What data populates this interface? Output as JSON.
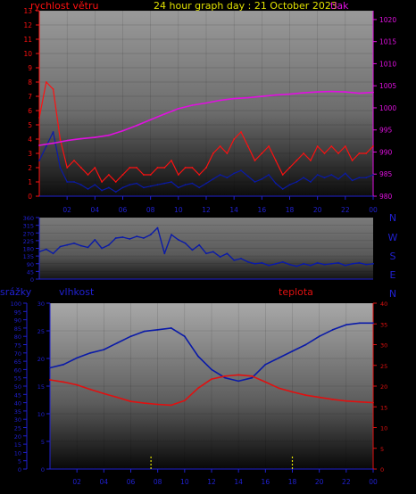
{
  "header": {
    "wind_label": "rychlost větru",
    "graph_title": "24 hour graph day : 21 October 2023",
    "pressure_label": "tlak"
  },
  "lower_labels": {
    "rain": "srážky",
    "humidity": "vlhkost",
    "temperature": "teplota"
  },
  "colors": {
    "wind": "#ff1010",
    "gust_blue": "#0a1aa8",
    "pressure": "#e010e0",
    "humidity": "#0a1aa8",
    "temperature": "#e01010",
    "rain": "#e0e000",
    "title": "#e0e000",
    "axis_blue": "#2020d0"
  },
  "chart_data": [
    {
      "type": "line",
      "name_ref": "wind-pressure",
      "x_ticks": [
        "02",
        "04",
        "06",
        "08",
        "10",
        "12",
        "14",
        "16",
        "18",
        "20",
        "22",
        "00"
      ],
      "xlim": [
        0,
        24
      ],
      "y_left": {
        "ylim": [
          0,
          13
        ],
        "ticks": [
          "0",
          "1",
          "2",
          "3",
          "4",
          "5",
          "6",
          "7",
          "8",
          "9",
          "10",
          "11",
          "12",
          "13"
        ]
      },
      "y_right": {
        "ylim": [
          980,
          1022
        ],
        "ticks": [
          "980",
          "985",
          "990",
          "995",
          "1000",
          "1005",
          "1010",
          "1015",
          "1020"
        ]
      },
      "series": [
        {
          "key": "wind_gust",
          "color": "#ff1010",
          "x": [
            0,
            0.5,
            1,
            1.5,
            2,
            2.5,
            3,
            3.5,
            4,
            4.5,
            5,
            5.5,
            6,
            6.5,
            7,
            7.5,
            8,
            8.5,
            9,
            9.5,
            10,
            10.5,
            11,
            11.5,
            12,
            12.5,
            13,
            13.5,
            14,
            14.5,
            15,
            15.5,
            16,
            16.5,
            17,
            17.5,
            18,
            18.5,
            19,
            19.5,
            20,
            20.5,
            21,
            21.5,
            22,
            22.5,
            23,
            23.5,
            24
          ],
          "y": [
            5.5,
            8.0,
            7.5,
            4.0,
            2.0,
            2.5,
            2.0,
            1.5,
            2.0,
            1.0,
            1.5,
            1.0,
            1.5,
            2.0,
            2.0,
            1.5,
            1.5,
            2.0,
            2.0,
            2.5,
            1.5,
            2.0,
            2.0,
            1.5,
            2.0,
            3.0,
            3.5,
            3.0,
            4.0,
            4.5,
            3.5,
            2.5,
            3.0,
            3.5,
            2.5,
            1.5,
            2.0,
            2.5,
            3.0,
            2.5,
            3.5,
            3.0,
            3.5,
            3.0,
            3.5,
            2.5,
            3.0,
            3.0,
            3.5
          ]
        },
        {
          "key": "wind_avg",
          "color": "#0a1aa8",
          "x": [
            0,
            0.5,
            1,
            1.5,
            2,
            2.5,
            3,
            3.5,
            4,
            4.5,
            5,
            5.5,
            6,
            6.5,
            7,
            7.5,
            8,
            8.5,
            9,
            9.5,
            10,
            10.5,
            11,
            11.5,
            12,
            12.5,
            13,
            13.5,
            14,
            14.5,
            15,
            15.5,
            16,
            16.5,
            17,
            17.5,
            18,
            18.5,
            19,
            19.5,
            20,
            20.5,
            21,
            21.5,
            22,
            22.5,
            23,
            23.5,
            24
          ],
          "y": [
            2.5,
            3.5,
            4.5,
            2.0,
            1.0,
            1.0,
            0.8,
            0.5,
            0.8,
            0.4,
            0.6,
            0.3,
            0.6,
            0.8,
            0.9,
            0.6,
            0.7,
            0.8,
            0.9,
            1.0,
            0.6,
            0.8,
            0.9,
            0.6,
            0.9,
            1.2,
            1.5,
            1.3,
            1.6,
            1.8,
            1.4,
            1.0,
            1.2,
            1.5,
            0.9,
            0.5,
            0.8,
            1.0,
            1.3,
            1.0,
            1.5,
            1.3,
            1.5,
            1.2,
            1.6,
            1.1,
            1.3,
            1.3,
            1.5
          ]
        },
        {
          "key": "pressure",
          "color": "#e010e0",
          "axis": "right",
          "x": [
            0,
            1,
            2,
            3,
            4,
            5,
            6,
            7,
            8,
            9,
            10,
            11,
            12,
            13,
            14,
            15,
            16,
            17,
            18,
            19,
            20,
            21,
            22,
            23,
            24
          ],
          "y": [
            991.5,
            992.0,
            992.6,
            993.0,
            993.3,
            993.8,
            994.8,
            996.0,
            997.3,
            998.6,
            999.8,
            1000.6,
            1001.1,
            1001.7,
            1002.1,
            1002.3,
            1002.6,
            1002.9,
            1003.1,
            1003.4,
            1003.6,
            1003.7,
            1003.6,
            1003.3,
            1003.5
          ]
        }
      ]
    },
    {
      "type": "line",
      "name_ref": "wind-direction",
      "xlim": [
        0,
        24
      ],
      "y_left": {
        "ylim": [
          0,
          360
        ],
        "ticks": [
          "0",
          "45",
          "90",
          "135",
          "180",
          "225",
          "270",
          "315",
          "360"
        ]
      },
      "compass": [
        "N",
        "W",
        "S",
        "E",
        "N"
      ],
      "series": [
        {
          "key": "direction",
          "color": "#0a1aa8",
          "x": [
            0,
            0.5,
            1,
            1.5,
            2,
            2.5,
            3,
            3.5,
            4,
            4.5,
            5,
            5.5,
            6,
            6.5,
            7,
            7.5,
            8,
            8.5,
            9,
            9.5,
            10,
            10.5,
            11,
            11.5,
            12,
            12.5,
            13,
            13.5,
            14,
            14.5,
            15,
            15.5,
            16,
            16.5,
            17,
            17.5,
            18,
            18.5,
            19,
            19.5,
            20,
            20.5,
            21,
            21.5,
            22,
            22.5,
            23,
            23.5,
            24
          ],
          "y": [
            160,
            175,
            150,
            190,
            200,
            210,
            195,
            185,
            230,
            180,
            200,
            240,
            245,
            235,
            250,
            240,
            260,
            300,
            150,
            260,
            230,
            210,
            170,
            200,
            150,
            160,
            130,
            150,
            110,
            120,
            100,
            90,
            95,
            80,
            90,
            100,
            85,
            75,
            90,
            80,
            95,
            85,
            90,
            95,
            80,
            90,
            95,
            85,
            90
          ]
        }
      ]
    },
    {
      "type": "line",
      "name_ref": "rain-humidity-temperature",
      "x_ticks": [
        "02",
        "04",
        "06",
        "08",
        "10",
        "12",
        "14",
        "16",
        "18",
        "20",
        "22",
        "00"
      ],
      "xlim": [
        0,
        24
      ],
      "y_rain": {
        "ylim": [
          0,
          100
        ],
        "ticks": [
          "0",
          "5",
          "10",
          "15",
          "20",
          "25",
          "30",
          "35",
          "40",
          "45",
          "50",
          "55",
          "60",
          "65",
          "70",
          "75",
          "80",
          "85",
          "90",
          "95",
          "100"
        ]
      },
      "y_hum": {
        "ylim": [
          0,
          30
        ],
        "ticks": [
          "0",
          "5",
          "10",
          "15",
          "20",
          "25",
          "30"
        ]
      },
      "y_temp": {
        "ylim": [
          0,
          40
        ],
        "ticks": [
          "0",
          "5",
          "10",
          "15",
          "20",
          "25",
          "30",
          "35",
          "40"
        ]
      },
      "series": [
        {
          "key": "humidity",
          "color": "#0a1aa8",
          "axis": "rain",
          "x": [
            0,
            1,
            2,
            3,
            4,
            5,
            6,
            7,
            8,
            9,
            10,
            11,
            12,
            13,
            14,
            15,
            16,
            17,
            18,
            19,
            20,
            21,
            22,
            23,
            24
          ],
          "y": [
            61,
            63,
            67,
            70,
            72,
            76,
            80,
            83,
            84,
            85,
            80,
            68,
            60,
            55,
            53,
            55,
            63,
            67,
            71,
            75,
            80,
            84,
            87,
            88,
            88
          ]
        },
        {
          "key": "temperature",
          "color": "#e01010",
          "axis": "temp",
          "x": [
            0,
            1,
            2,
            3,
            4,
            5,
            6,
            7,
            8,
            9,
            10,
            11,
            12,
            13,
            14,
            15,
            16,
            17,
            18,
            19,
            20,
            21,
            22,
            23,
            24
          ],
          "y": [
            21.5,
            21.0,
            20.3,
            19.2,
            18.2,
            17.3,
            16.3,
            15.9,
            15.6,
            15.4,
            16.5,
            19.5,
            21.7,
            22.4,
            22.7,
            22.4,
            21.0,
            19.5,
            18.6,
            17.8,
            17.3,
            16.8,
            16.4,
            16.2,
            16.0
          ]
        },
        {
          "key": "rain",
          "color": "#e0e000",
          "axis": "rain",
          "x": [
            7.5,
            18.0
          ],
          "y": [
            8,
            8
          ]
        }
      ]
    }
  ]
}
